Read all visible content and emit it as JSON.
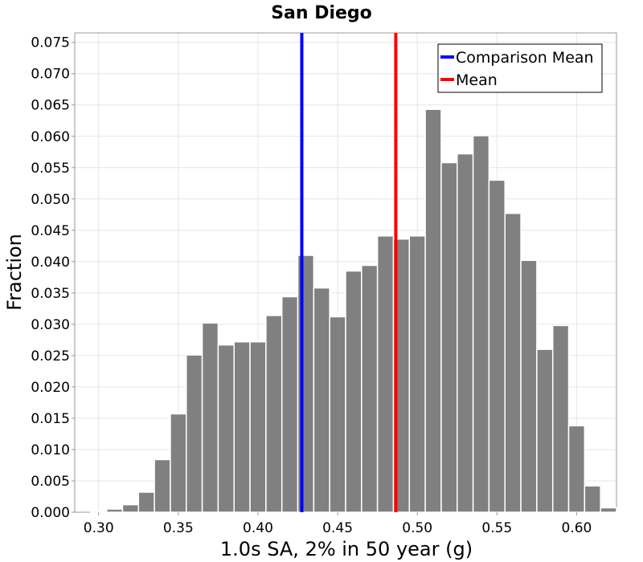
{
  "chart_data": {
    "type": "bar",
    "title": "San Diego",
    "xlabel": "1.0s SA, 2% in 50 year (g)",
    "ylabel": "Fraction",
    "xlim": [
      0.285,
      0.625
    ],
    "ylim": [
      0.0,
      0.0765
    ],
    "bin_width": 0.01,
    "bins": [
      {
        "x": 0.3,
        "value": 0.0002
      },
      {
        "x": 0.31,
        "value": 0.0005
      },
      {
        "x": 0.32,
        "value": 0.0012
      },
      {
        "x": 0.33,
        "value": 0.0032
      },
      {
        "x": 0.34,
        "value": 0.0084
      },
      {
        "x": 0.35,
        "value": 0.0157
      },
      {
        "x": 0.36,
        "value": 0.0251
      },
      {
        "x": 0.37,
        "value": 0.0302
      },
      {
        "x": 0.38,
        "value": 0.0267
      },
      {
        "x": 0.39,
        "value": 0.0272
      },
      {
        "x": 0.4,
        "value": 0.0272
      },
      {
        "x": 0.41,
        "value": 0.0314
      },
      {
        "x": 0.42,
        "value": 0.0344
      },
      {
        "x": 0.43,
        "value": 0.041
      },
      {
        "x": 0.44,
        "value": 0.0358
      },
      {
        "x": 0.45,
        "value": 0.0312
      },
      {
        "x": 0.46,
        "value": 0.0385
      },
      {
        "x": 0.47,
        "value": 0.0394
      },
      {
        "x": 0.48,
        "value": 0.0441
      },
      {
        "x": 0.49,
        "value": 0.0436
      },
      {
        "x": 0.5,
        "value": 0.0441
      },
      {
        "x": 0.51,
        "value": 0.0643
      },
      {
        "x": 0.52,
        "value": 0.0558
      },
      {
        "x": 0.53,
        "value": 0.0572
      },
      {
        "x": 0.54,
        "value": 0.0601
      },
      {
        "x": 0.55,
        "value": 0.053
      },
      {
        "x": 0.56,
        "value": 0.0477
      },
      {
        "x": 0.57,
        "value": 0.0402
      },
      {
        "x": 0.58,
        "value": 0.026
      },
      {
        "x": 0.59,
        "value": 0.0298
      },
      {
        "x": 0.6,
        "value": 0.0138
      },
      {
        "x": 0.61,
        "value": 0.0042
      },
      {
        "x": 0.62,
        "value": 0.0007
      }
    ],
    "bar_color": "#808080",
    "vlines": [
      {
        "name": "Comparison Mean",
        "x": 0.4275,
        "color": "#0000ff"
      },
      {
        "name": "Mean",
        "x": 0.4865,
        "color": "#ff0000"
      }
    ],
    "xticks": [
      "0.30",
      "0.35",
      "0.40",
      "0.45",
      "0.50",
      "0.55",
      "0.60"
    ],
    "yticks": [
      "0.000",
      "0.005",
      "0.010",
      "0.015",
      "0.020",
      "0.025",
      "0.030",
      "0.035",
      "0.040",
      "0.045",
      "0.050",
      "0.055",
      "0.060",
      "0.065",
      "0.070",
      "0.075"
    ],
    "grid": true,
    "legend_position": "top-right"
  }
}
